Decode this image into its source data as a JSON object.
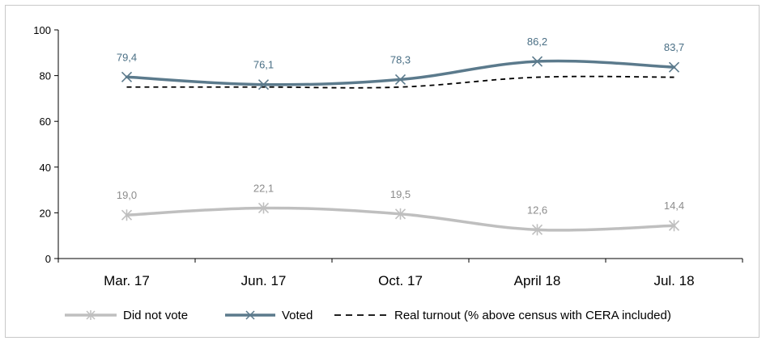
{
  "chart_data": {
    "type": "line",
    "categories": [
      "Mar. 17",
      "Jun. 17",
      "Oct. 17",
      "April 18",
      "Jul. 18"
    ],
    "ylim": [
      0,
      100
    ],
    "yticks": [
      "0",
      "20",
      "40",
      "60",
      "80",
      "100"
    ],
    "grid": false,
    "legend_position": "bottom",
    "series": [
      {
        "name": "Did not vote",
        "values": [
          19.0,
          22.1,
          19.5,
          12.6,
          14.4
        ],
        "labels": [
          "19,0",
          "22,1",
          "19,5",
          "12,6",
          "14,4"
        ],
        "color": "#bfbfbf",
        "label_color": "#8c8c8c",
        "marker": "asterisk",
        "style": "solid"
      },
      {
        "name": "Voted",
        "values": [
          79.4,
          76.1,
          78.3,
          86.2,
          83.7
        ],
        "labels": [
          "79,4",
          "76,1",
          "78,3",
          "86,2",
          "83,7"
        ],
        "color": "#5b7a8c",
        "label_color": "#4a6f85",
        "marker": "x",
        "style": "solid"
      },
      {
        "name": "Real turnout (% above census with CERA included)",
        "values": [
          75.0,
          75.0,
          75.0,
          79.3,
          79.3
        ],
        "color": "#000000",
        "marker": "none",
        "style": "dashed"
      }
    ]
  }
}
